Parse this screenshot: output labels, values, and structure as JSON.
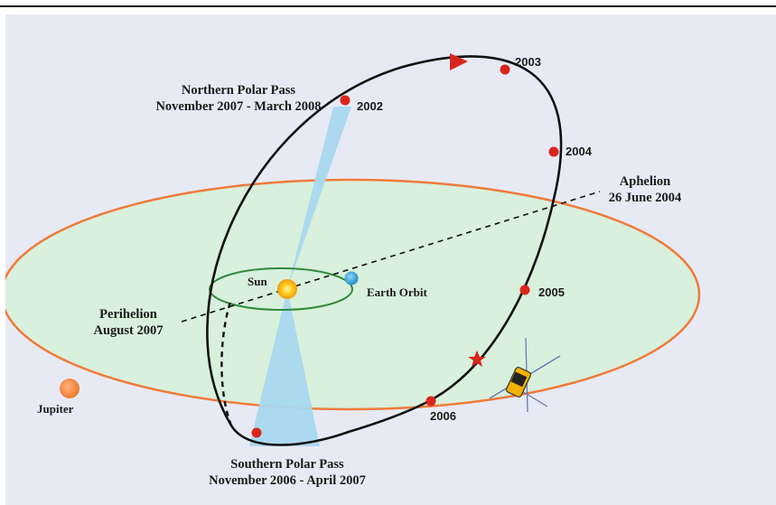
{
  "labels": {
    "northern_title": "Northern Polar Pass",
    "northern_dates": "November 2007 - March 2008",
    "southern_title": "Southern Polar Pass",
    "southern_dates": "November 2006 - April 2007",
    "aphelion_title": "Aphelion",
    "aphelion_date": "26 June 2004",
    "perihelion_title": "Perihelion",
    "perihelion_date": "August 2007",
    "sun": "Sun",
    "earth_orbit": "Earth Orbit",
    "jupiter": "Jupiter"
  },
  "years": {
    "y2002": "2002",
    "y2003": "2003",
    "y2004": "2004",
    "y2005": "2005",
    "y2006": "2006"
  },
  "colors": {
    "background": "#e7eaf4",
    "jupiter_orbit_fill": "#d8f0dc",
    "jupiter_orbit_stroke": "#f07a3a",
    "earth_orbit_stroke": "#2f8a3f",
    "polar_cone": "#a9d8ee",
    "sun": "#ffc81a",
    "earth": "#2aa3d6",
    "jupiter": "#f5843c",
    "year_marker": "#d9261c",
    "trajectory": "#111111"
  },
  "icons": {
    "direction": "triangle-arrow-icon",
    "star": "star-icon",
    "spacecraft": "spacecraft-icon"
  }
}
